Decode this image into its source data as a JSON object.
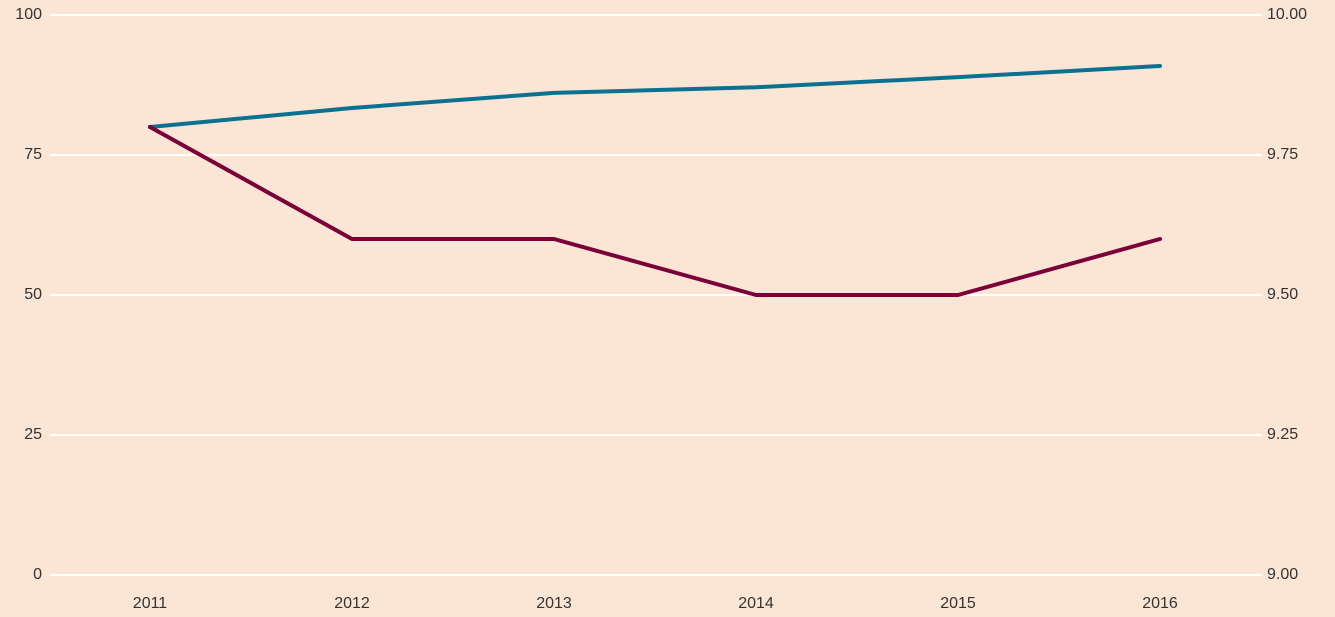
{
  "chart_data": {
    "type": "line",
    "categories": [
      "2011",
      "2012",
      "2013",
      "2014",
      "2015",
      "2016"
    ],
    "series": [
      {
        "color": "#0b7190",
        "axis": "y2",
        "values": [
          9.8,
          9.834,
          9.861,
          9.871,
          9.889,
          9.909
        ]
      },
      {
        "color": "#7b0039",
        "values": [
          80,
          60,
          60,
          50,
          50,
          60
        ]
      }
    ],
    "ylim": [
      0,
      100
    ],
    "yticks": [
      0,
      25,
      50,
      75,
      100
    ],
    "y2lim": [
      9,
      10
    ],
    "y2ticks": [
      {
        "value": 9,
        "label": "9.00"
      },
      9.25,
      {
        "value": 9.5,
        "label": "9.50"
      },
      9.75,
      {
        "value": 10,
        "label": "10.00"
      }
    ],
    "grid": true,
    "background": "#fbe6d5",
    "grid_color": "#ffffff"
  }
}
